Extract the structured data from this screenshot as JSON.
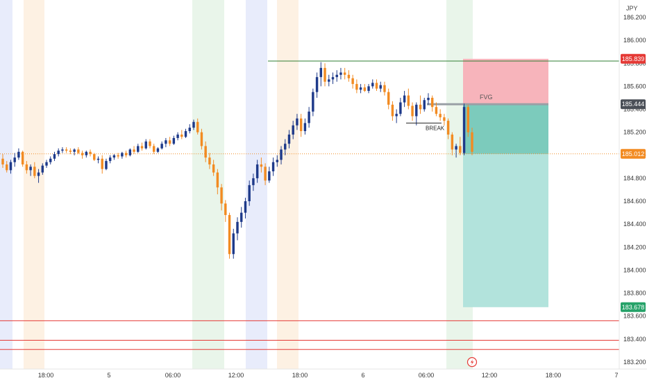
{
  "currency_label": "JPY",
  "colors": {
    "up": "#1e3a8a",
    "down": "#f28b22",
    "session_blue": "#e8ecfb",
    "session_orange": "#fdf1e3",
    "session_green": "#e9f5ea",
    "stop_zone": "#f7b4bb",
    "target_zone": "#b2e3dc",
    "target_zone_near": "#7ccbbc",
    "ob_line": "#2e7d32",
    "support_line": "#e53935",
    "fvg_line": "#9aa0a6",
    "current_price": "#f28b22",
    "stop_tag": "#e53935",
    "target_tag": "#26a269",
    "fvg_tag": "#4a4f57"
  },
  "price_tags": {
    "stop": "185.839",
    "fvg": "185.444",
    "current": "185.012",
    "target": "183.678"
  },
  "annotations": {
    "fvg": "FVG",
    "break": "BREAK"
  },
  "chart_data": {
    "type": "candlestick",
    "symbol_currency": "JPY",
    "y_axis": {
      "ticks": [
        "186.200",
        "186.000",
        "185.800",
        "185.600",
        "185.400",
        "185.200",
        "185.000",
        "184.800",
        "184.600",
        "184.400",
        "184.200",
        "184.000",
        "183.800",
        "183.600",
        "183.400",
        "183.200"
      ],
      "range": [
        183.18,
        186.28
      ]
    },
    "x_axis": {
      "ticks": [
        "18:00",
        "5",
        "06:00",
        "12:00",
        "18:00",
        "6",
        "06:00",
        "12:00",
        "18:00",
        "7"
      ]
    },
    "ohlc": [
      [
        184.97,
        185.01,
        184.89,
        184.92
      ],
      [
        184.92,
        184.95,
        184.85,
        184.87
      ],
      [
        184.87,
        184.96,
        184.84,
        184.94
      ],
      [
        184.94,
        185.02,
        184.9,
        184.98
      ],
      [
        184.98,
        185.06,
        184.96,
        185.03
      ],
      [
        185.03,
        185.04,
        184.9,
        184.92
      ],
      [
        184.92,
        184.95,
        184.84,
        184.87
      ],
      [
        184.87,
        184.92,
        184.82,
        184.9
      ],
      [
        184.9,
        184.94,
        184.8,
        184.82
      ],
      [
        184.82,
        184.88,
        184.76,
        184.85
      ],
      [
        184.85,
        184.93,
        184.83,
        184.91
      ],
      [
        184.91,
        184.96,
        184.89,
        184.94
      ],
      [
        184.94,
        184.99,
        184.92,
        184.97
      ],
      [
        184.97,
        185.03,
        184.95,
        185.01
      ],
      [
        185.01,
        185.06,
        184.99,
        185.04
      ],
      [
        185.04,
        185.07,
        185.02,
        185.05
      ],
      [
        185.05,
        185.07,
        185.02,
        185.04
      ],
      [
        185.04,
        185.06,
        185.01,
        185.03
      ],
      [
        185.03,
        185.06,
        185.0,
        185.05
      ],
      [
        185.05,
        185.07,
        185.01,
        185.02
      ],
      [
        185.02,
        185.04,
        184.97,
        185.0
      ],
      [
        185.0,
        185.04,
        184.98,
        185.03
      ],
      [
        185.03,
        185.05,
        184.99,
        185.01
      ],
      [
        185.01,
        185.02,
        184.95,
        184.96
      ],
      [
        184.96,
        184.99,
        184.93,
        184.97
      ],
      [
        184.97,
        185.0,
        184.84,
        184.88
      ],
      [
        184.88,
        184.97,
        184.87,
        184.95
      ],
      [
        184.95,
        185.0,
        184.93,
        184.98
      ],
      [
        184.98,
        185.01,
        184.96,
        185.0
      ],
      [
        185.0,
        185.02,
        184.97,
        184.99
      ],
      [
        184.99,
        185.03,
        184.97,
        185.02
      ],
      [
        185.02,
        185.04,
        184.98,
        185.0
      ],
      [
        185.0,
        185.06,
        184.99,
        185.05
      ],
      [
        185.05,
        185.08,
        185.01,
        185.03
      ],
      [
        185.03,
        185.1,
        185.02,
        185.08
      ],
      [
        185.08,
        185.11,
        185.04,
        185.06
      ],
      [
        185.06,
        185.14,
        185.05,
        185.12
      ],
      [
        185.12,
        185.14,
        185.06,
        185.08
      ],
      [
        185.08,
        185.1,
        185.01,
        185.03
      ],
      [
        185.03,
        185.07,
        185.02,
        185.06
      ],
      [
        185.06,
        185.12,
        185.05,
        185.1
      ],
      [
        185.1,
        185.15,
        185.07,
        185.13
      ],
      [
        185.13,
        185.16,
        185.08,
        185.1
      ],
      [
        185.1,
        185.17,
        185.09,
        185.15
      ],
      [
        185.15,
        185.2,
        185.13,
        185.18
      ],
      [
        185.18,
        185.22,
        185.14,
        185.16
      ],
      [
        185.16,
        185.23,
        185.15,
        185.21
      ],
      [
        185.21,
        185.27,
        185.19,
        185.24
      ],
      [
        185.24,
        185.31,
        185.22,
        185.29
      ],
      [
        185.29,
        185.32,
        185.18,
        185.2
      ],
      [
        185.2,
        185.23,
        185.05,
        185.08
      ],
      [
        185.08,
        185.12,
        184.94,
        184.98
      ],
      [
        184.98,
        185.02,
        184.88,
        184.92
      ],
      [
        184.92,
        184.96,
        184.82,
        184.85
      ],
      [
        184.85,
        184.88,
        184.66,
        184.72
      ],
      [
        184.72,
        184.75,
        184.52,
        184.58
      ],
      [
        184.58,
        184.61,
        184.42,
        184.48
      ],
      [
        184.48,
        184.5,
        184.1,
        184.14
      ],
      [
        184.14,
        184.36,
        184.1,
        184.32
      ],
      [
        184.32,
        184.46,
        184.26,
        184.42
      ],
      [
        184.42,
        184.55,
        184.37,
        184.5
      ],
      [
        184.5,
        184.63,
        184.45,
        184.6
      ],
      [
        184.6,
        184.78,
        184.56,
        184.74
      ],
      [
        184.74,
        184.84,
        184.69,
        184.8
      ],
      [
        184.8,
        184.96,
        184.76,
        184.92
      ],
      [
        184.92,
        184.98,
        184.85,
        184.9
      ],
      [
        184.9,
        184.93,
        184.74,
        184.78
      ],
      [
        184.78,
        184.9,
        184.76,
        184.86
      ],
      [
        184.86,
        184.98,
        184.82,
        184.94
      ],
      [
        184.94,
        185.0,
        184.9,
        184.96
      ],
      [
        184.96,
        185.08,
        184.92,
        185.05
      ],
      [
        185.05,
        185.14,
        185.0,
        185.1
      ],
      [
        185.1,
        185.22,
        185.06,
        185.18
      ],
      [
        185.18,
        185.3,
        185.14,
        185.26
      ],
      [
        185.26,
        185.36,
        185.22,
        185.32
      ],
      [
        185.32,
        185.36,
        185.16,
        185.21
      ],
      [
        185.21,
        185.32,
        185.18,
        185.28
      ],
      [
        185.28,
        185.42,
        185.24,
        185.38
      ],
      [
        185.38,
        185.58,
        185.34,
        185.55
      ],
      [
        185.55,
        185.72,
        185.5,
        185.68
      ],
      [
        185.68,
        185.81,
        185.6,
        185.76
      ],
      [
        185.76,
        185.8,
        185.6,
        185.64
      ],
      [
        185.64,
        185.7,
        185.6,
        185.66
      ],
      [
        185.66,
        185.72,
        185.62,
        185.68
      ],
      [
        185.68,
        185.74,
        185.64,
        185.7
      ],
      [
        185.7,
        185.76,
        185.66,
        185.72
      ],
      [
        185.72,
        185.76,
        185.66,
        185.7
      ],
      [
        185.7,
        185.74,
        185.64,
        185.67
      ],
      [
        185.67,
        185.7,
        185.58,
        185.62
      ],
      [
        185.62,
        185.66,
        185.54,
        185.57
      ],
      [
        185.57,
        185.62,
        185.54,
        185.59
      ],
      [
        185.59,
        185.62,
        185.55,
        185.56
      ],
      [
        185.56,
        185.62,
        185.54,
        185.6
      ],
      [
        185.6,
        185.66,
        185.58,
        185.63
      ],
      [
        185.63,
        185.66,
        185.56,
        185.58
      ],
      [
        185.58,
        185.64,
        185.55,
        185.61
      ],
      [
        185.61,
        185.64,
        185.52,
        185.55
      ],
      [
        185.55,
        185.58,
        185.4,
        185.44
      ],
      [
        185.44,
        185.47,
        185.3,
        185.34
      ],
      [
        185.34,
        185.4,
        185.28,
        185.36
      ],
      [
        185.36,
        185.5,
        185.34,
        185.46
      ],
      [
        185.46,
        185.56,
        185.42,
        185.52
      ],
      [
        185.52,
        185.58,
        185.4,
        185.43
      ],
      [
        185.43,
        185.46,
        185.3,
        185.34
      ],
      [
        185.34,
        185.46,
        185.26,
        185.44
      ],
      [
        185.44,
        185.52,
        185.36,
        185.4
      ],
      [
        185.4,
        185.5,
        185.38,
        185.48
      ],
      [
        185.48,
        185.54,
        185.44,
        185.5
      ],
      [
        185.5,
        185.52,
        185.38,
        185.42
      ],
      [
        185.42,
        185.46,
        185.34,
        185.36
      ],
      [
        185.36,
        185.4,
        185.3,
        185.33
      ],
      [
        185.33,
        185.36,
        185.26,
        185.3
      ],
      [
        185.3,
        185.32,
        185.14,
        185.18
      ],
      [
        185.18,
        185.2,
        185.0,
        185.05
      ],
      [
        185.05,
        185.1,
        184.98,
        185.08
      ],
      [
        185.08,
        185.16,
        185.0,
        185.02
      ],
      [
        185.02,
        185.45,
        185.0,
        185.42
      ],
      [
        185.42,
        185.44,
        185.16,
        185.2
      ],
      [
        185.2,
        185.24,
        185.0,
        185.03
      ]
    ],
    "levels": [
      {
        "label": "",
        "price": 185.82
      },
      {
        "label": "FVG",
        "price": 185.444
      },
      {
        "label": "",
        "price": 185.012
      },
      {
        "label": "",
        "price": 183.56
      },
      {
        "label": "",
        "price": 183.39
      },
      {
        "label": "",
        "price": 183.31
      }
    ],
    "position": {
      "entry": 185.012,
      "stop": 185.839,
      "target": 183.678
    },
    "break_level": 185.28
  }
}
